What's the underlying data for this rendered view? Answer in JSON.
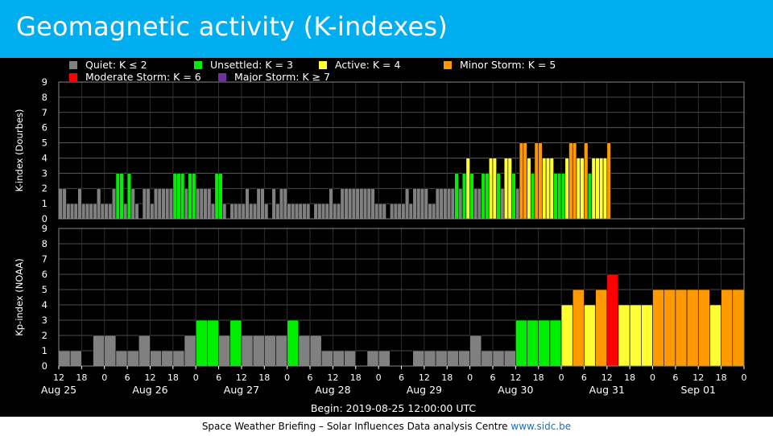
{
  "slide": {
    "title": "Geomagnetic activity (K-indexes)",
    "footer_text": "Space Weather Briefing – Solar Influences Data analysis Centre",
    "footer_link": "www.sidc.be"
  },
  "colors": {
    "quiet": "#808080",
    "unsettled": "#00ee00",
    "active": "#ffff33",
    "minor": "#ff9900",
    "moderate": "#ff0000",
    "major": "#7030a0",
    "header": "#00aeef"
  },
  "chart_data": {
    "type": "bar",
    "begin_label": "Begin: 2019-08-25 12:00:00 UTC",
    "time_ticks": [
      "12",
      "18",
      "0",
      "6",
      "12",
      "18",
      "0",
      "6",
      "12",
      "18",
      "0",
      "6",
      "12",
      "18",
      "0",
      "6",
      "12",
      "18",
      "0",
      "6",
      "12",
      "18",
      "0",
      "6",
      "12",
      "18",
      "0",
      "6",
      "12",
      "18",
      "0"
    ],
    "day_labels": [
      "Aug 25",
      "Aug 26",
      "Aug 27",
      "Aug 28",
      "Aug 29",
      "Aug 30",
      "Aug 31",
      "Sep 01"
    ],
    "ylim": [
      0,
      9
    ],
    "legend": [
      {
        "label": "Quiet: K ≤ 2",
        "color": "#808080"
      },
      {
        "label": "Unsettled: K = 3",
        "color": "#00ee00"
      },
      {
        "label": "Active: K = 4",
        "color": "#ffff33"
      },
      {
        "label": "Minor Storm: K = 5",
        "color": "#ff9900"
      },
      {
        "label": "Moderate Storm: K = 6",
        "color": "#ff0000"
      },
      {
        "label": "Major Storm: K ≥ 7",
        "color": "#7030a0"
      }
    ],
    "panels": [
      {
        "ylabel": "K-index (Dourbes)",
        "interval_hours": 1,
        "values": [
          2,
          2,
          1,
          1,
          1,
          2,
          1,
          1,
          1,
          1,
          2,
          1,
          1,
          1,
          2,
          3,
          3,
          1,
          3,
          2,
          1,
          0,
          2,
          2,
          1,
          2,
          2,
          2,
          2,
          2,
          3,
          3,
          3,
          2,
          3,
          3,
          2,
          2,
          2,
          2,
          1,
          3,
          3,
          1,
          0,
          1,
          1,
          1,
          1,
          2,
          1,
          1,
          2,
          2,
          1,
          0,
          2,
          1,
          2,
          2,
          1,
          1,
          1,
          1,
          1,
          1,
          0,
          1,
          1,
          1,
          1,
          2,
          1,
          1,
          2,
          2,
          2,
          2,
          2,
          2,
          2,
          2,
          2,
          1,
          1,
          1,
          0,
          1,
          1,
          1,
          1,
          2,
          1,
          2,
          2,
          2,
          2,
          1,
          1,
          2,
          2,
          2,
          2,
          2,
          3,
          2,
          3,
          4,
          3,
          2,
          2,
          3,
          3,
          4,
          4,
          3,
          2,
          4,
          4,
          3,
          2,
          5,
          5,
          4,
          3,
          5,
          5,
          4,
          4,
          4,
          3,
          3,
          3,
          4,
          5,
          5,
          4,
          4,
          5,
          3,
          4,
          4,
          4,
          4,
          5
        ]
      },
      {
        "ylabel": "Kp-index (NOAA)",
        "interval_hours": 3,
        "values": [
          1,
          1,
          0,
          2,
          2,
          1,
          1,
          2,
          1,
          1,
          1,
          2,
          3,
          3,
          2,
          3,
          2,
          2,
          2,
          2,
          3,
          2,
          2,
          1,
          1,
          1,
          0,
          1,
          1,
          0,
          0,
          1,
          1,
          1,
          1,
          1,
          2,
          1,
          1,
          1,
          3,
          3,
          3,
          3,
          4,
          5,
          4,
          5,
          6,
          4,
          4,
          4,
          5,
          5,
          5,
          5,
          5,
          4,
          5,
          5
        ]
      }
    ]
  }
}
